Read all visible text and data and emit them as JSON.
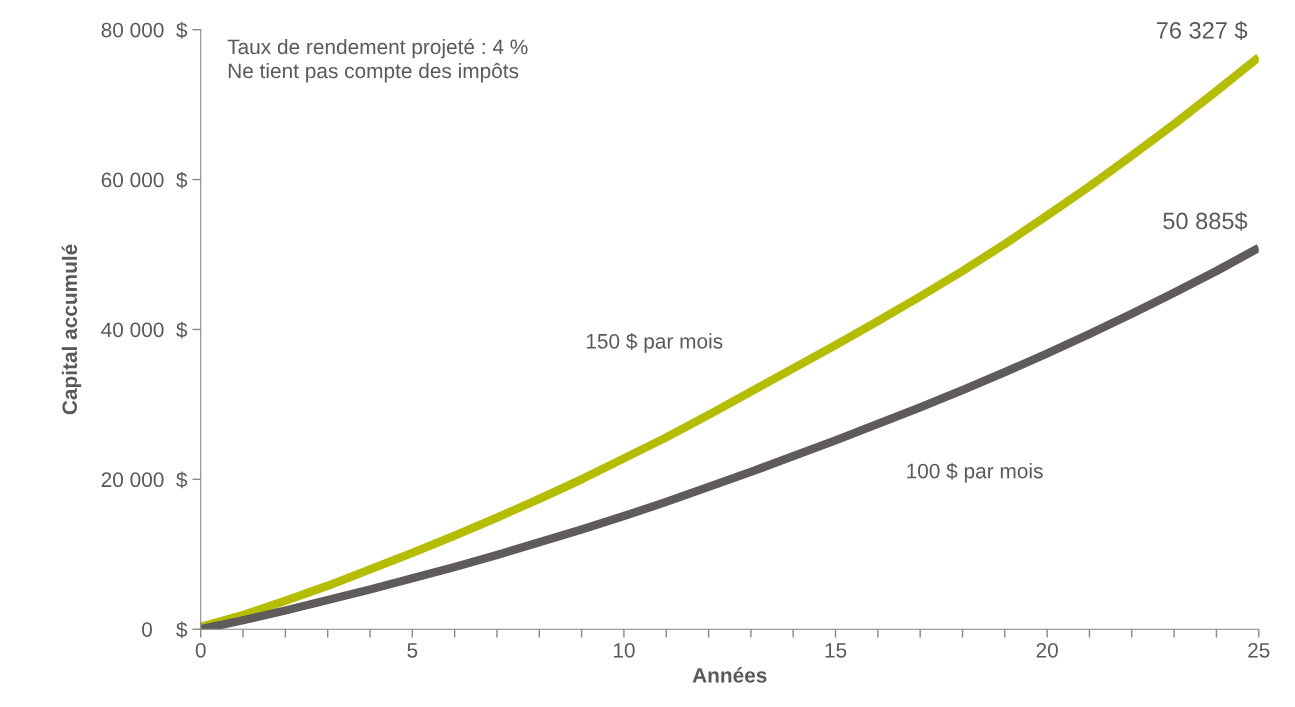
{
  "chart_data": {
    "type": "line",
    "xlabel": "Années",
    "ylabel": "Capital accumulé",
    "x": [
      0,
      1,
      2,
      3,
      4,
      5,
      6,
      7,
      8,
      9,
      10,
      11,
      12,
      13,
      14,
      15,
      16,
      17,
      18,
      19,
      20,
      21,
      22,
      23,
      24,
      25
    ],
    "series": [
      {
        "name": "150 $ par mois",
        "color": "#b5bd00",
        "values": [
          300,
          1900,
          3800,
          5800,
          8000,
          10200,
          12500,
          14900,
          17400,
          20000,
          22800,
          25600,
          28600,
          31700,
          34800,
          37900,
          41100,
          44400,
          47800,
          51400,
          55200,
          59100,
          63200,
          67400,
          71800,
          76327
        ]
      },
      {
        "name": "100 $ par mois",
        "color": "#5f5b5b",
        "values": [
          0,
          1200,
          2500,
          3900,
          5300,
          6800,
          8300,
          9900,
          11600,
          13300,
          15100,
          17000,
          19000,
          21000,
          23100,
          25200,
          27400,
          29600,
          31900,
          34300,
          36800,
          39400,
          42100,
          44900,
          47800,
          50885
        ]
      }
    ],
    "xlim": [
      0,
      25
    ],
    "ylim": [
      0,
      80000
    ],
    "xticks": [
      0,
      {
        "value": 1,
        "label": null
      },
      {
        "value": 2,
        "label": null
      },
      {
        "value": 3,
        "label": null
      },
      {
        "value": 4,
        "label": null
      },
      5,
      {
        "value": 6,
        "label": null
      },
      {
        "value": 7,
        "label": null
      },
      {
        "value": 8,
        "label": null
      },
      {
        "value": 9,
        "label": null
      },
      10,
      {
        "value": 11,
        "label": null
      },
      {
        "value": 12,
        "label": null
      },
      {
        "value": 13,
        "label": null
      },
      {
        "value": 14,
        "label": null
      },
      15,
      {
        "value": 16,
        "label": null
      },
      {
        "value": 17,
        "label": null
      },
      {
        "value": 18,
        "label": null
      },
      {
        "value": 19,
        "label": null
      },
      20,
      {
        "value": 21,
        "label": null
      },
      {
        "value": 22,
        "label": null
      },
      {
        "value": 23,
        "label": null
      },
      {
        "value": 24,
        "label": null
      },
      25
    ],
    "yticks": [
      {
        "value": 0,
        "label": "0    $"
      },
      {
        "value": 20000,
        "label": "20 000  $"
      },
      {
        "value": 40000,
        "label": "40 000  $"
      },
      {
        "value": 60000,
        "label": "60 000  $"
      },
      {
        "value": 80000,
        "label": "80 000  $"
      }
    ],
    "grid": false,
    "legend": false,
    "marker": "none",
    "line_style": "solid",
    "annotations": [
      "Taux de rendement projeté : 4 %\nNe tient pas compte des impôts",
      {
        "text": "76 327 $",
        "x": 25,
        "y": 76327
      },
      {
        "text": "50 885$",
        "x": 25,
        "y": 50885
      }
    ]
  }
}
